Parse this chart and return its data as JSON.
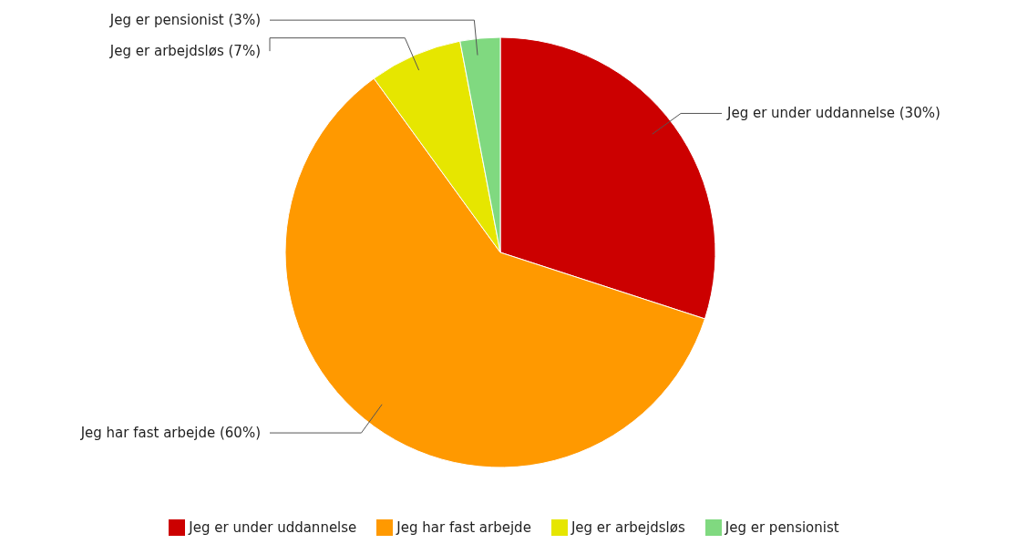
{
  "chart_data": {
    "type": "pie",
    "categories": [
      "Jeg er under uddannelse",
      "Jeg har fast arbejde",
      "Jeg er arbejdsløs",
      "Jeg er pensionist"
    ],
    "values": [
      30,
      60,
      7,
      3
    ],
    "colors": [
      "#cc0000",
      "#ff9900",
      "#e6e600",
      "#80d980"
    ],
    "value_labels": [
      "Jeg er under uddannelse (30%)",
      "Jeg har fast arbejde (60%)",
      "Jeg er arbejdsløs (7%)",
      "Jeg er pensionist (3%)"
    ],
    "legend": "bottom"
  }
}
